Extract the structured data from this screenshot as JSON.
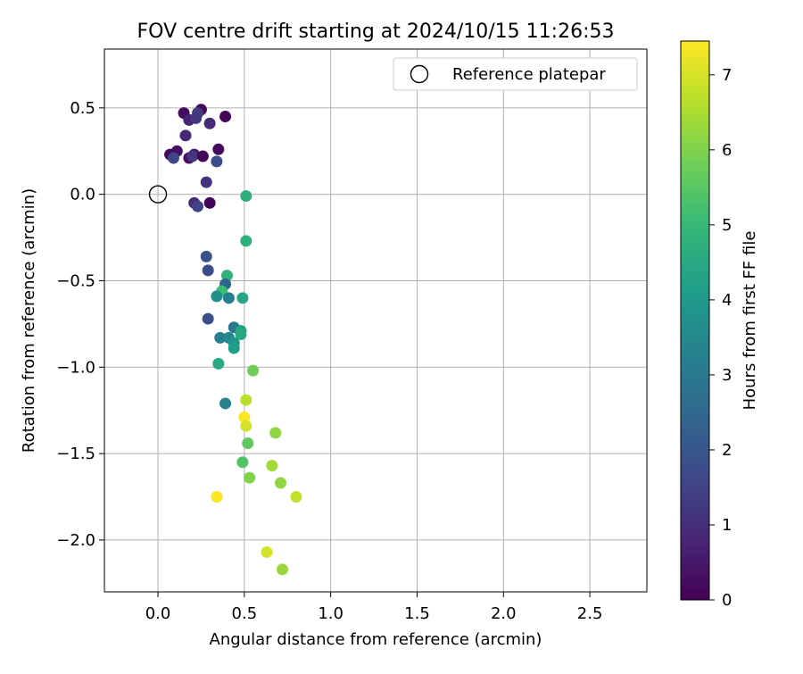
{
  "chart_data": {
    "type": "scatter",
    "title": "FOV centre drift starting at 2024/10/15 11:26:53",
    "xlabel": "Angular distance from reference (arcmin)",
    "ylabel": "Rotation from reference (arcmin)",
    "xlim": [
      -0.31,
      2.83
    ],
    "ylim": [
      -2.3,
      0.84
    ],
    "xticks": [
      0.0,
      0.5,
      1.0,
      1.5,
      2.0,
      2.5
    ],
    "xtick_labels": [
      "0.0",
      "0.5",
      "1.0",
      "1.5",
      "2.0",
      "2.5"
    ],
    "yticks": [
      0.5,
      0.0,
      -0.5,
      -1.0,
      -1.5,
      -2.0
    ],
    "ytick_labels": [
      "0.5",
      "0.0",
      "−0.5",
      "−1.0",
      "−1.5",
      "−2.0"
    ],
    "grid": true,
    "legend": {
      "placement": "top-right",
      "entries": [
        "Reference platepar"
      ]
    },
    "reference_point": {
      "x": 0.0,
      "y": 0.0
    },
    "colorbar": {
      "label": "Hours from first FF file",
      "min": 0,
      "max": 7.45,
      "ticks": [
        0,
        1,
        2,
        3,
        4,
        5,
        6,
        7
      ],
      "tick_labels": [
        "0",
        "1",
        "2",
        "3",
        "4",
        "5",
        "6",
        "7"
      ],
      "colormap": "viridis",
      "stops": [
        "#440154",
        "#482878",
        "#3e4989",
        "#31688e",
        "#26828e",
        "#1f9e89",
        "#35b779",
        "#6ece58",
        "#b5de2b",
        "#fde725"
      ]
    },
    "points": [
      {
        "x": 0.25,
        "y": 0.49,
        "h": 0.1
      },
      {
        "x": 0.39,
        "y": 0.45,
        "h": 0.1
      },
      {
        "x": 0.15,
        "y": 0.47,
        "h": 0.2
      },
      {
        "x": 0.18,
        "y": 0.43,
        "h": 0.7
      },
      {
        "x": 0.23,
        "y": 0.47,
        "h": 1.3
      },
      {
        "x": 0.22,
        "y": 0.44,
        "h": 1.2
      },
      {
        "x": 0.3,
        "y": 0.41,
        "h": 0.9
      },
      {
        "x": 0.16,
        "y": 0.34,
        "h": 0.8
      },
      {
        "x": 0.35,
        "y": 0.26,
        "h": 0.2
      },
      {
        "x": 0.11,
        "y": 0.25,
        "h": 0.3
      },
      {
        "x": 0.07,
        "y": 0.23,
        "h": 0.2
      },
      {
        "x": 0.18,
        "y": 0.21,
        "h": 0.3
      },
      {
        "x": 0.21,
        "y": 0.23,
        "h": 0.5
      },
      {
        "x": 0.2,
        "y": 0.22,
        "h": 1.2
      },
      {
        "x": 0.26,
        "y": 0.22,
        "h": 0.1
      },
      {
        "x": 0.09,
        "y": 0.21,
        "h": 1.6
      },
      {
        "x": 0.34,
        "y": 0.19,
        "h": 1.8
      },
      {
        "x": 0.28,
        "y": 0.07,
        "h": 1.1
      },
      {
        "x": 0.21,
        "y": -0.05,
        "h": 0.9
      },
      {
        "x": 0.23,
        "y": -0.07,
        "h": 1.5
      },
      {
        "x": 0.3,
        "y": -0.05,
        "h": 0.1
      },
      {
        "x": 0.51,
        "y": -0.01,
        "h": 4.7
      },
      {
        "x": 0.51,
        "y": -0.27,
        "h": 4.7
      },
      {
        "x": 0.28,
        "y": -0.36,
        "h": 1.9
      },
      {
        "x": 0.29,
        "y": -0.44,
        "h": 1.7
      },
      {
        "x": 0.4,
        "y": -0.47,
        "h": 4.8
      },
      {
        "x": 0.39,
        "y": -0.52,
        "h": 2.4
      },
      {
        "x": 0.37,
        "y": -0.56,
        "h": 5.1
      },
      {
        "x": 0.34,
        "y": -0.59,
        "h": 3.7
      },
      {
        "x": 0.41,
        "y": -0.6,
        "h": 3.2
      },
      {
        "x": 0.49,
        "y": -0.6,
        "h": 4.4
      },
      {
        "x": 0.29,
        "y": -0.72,
        "h": 1.8
      },
      {
        "x": 0.44,
        "y": -0.77,
        "h": 3.0
      },
      {
        "x": 0.48,
        "y": -0.79,
        "h": 4.3
      },
      {
        "x": 0.48,
        "y": -0.81,
        "h": 4.5
      },
      {
        "x": 0.36,
        "y": -0.83,
        "h": 3.2
      },
      {
        "x": 0.41,
        "y": -0.83,
        "h": 3.5
      },
      {
        "x": 0.44,
        "y": -0.86,
        "h": 3.9
      },
      {
        "x": 0.44,
        "y": -0.89,
        "h": 4.2
      },
      {
        "x": 0.35,
        "y": -0.98,
        "h": 4.5
      },
      {
        "x": 0.55,
        "y": -1.02,
        "h": 5.8
      },
      {
        "x": 0.39,
        "y": -1.21,
        "h": 3.3
      },
      {
        "x": 0.51,
        "y": -1.19,
        "h": 6.7
      },
      {
        "x": 0.5,
        "y": -1.29,
        "h": 7.4
      },
      {
        "x": 0.51,
        "y": -1.34,
        "h": 7.0
      },
      {
        "x": 0.68,
        "y": -1.38,
        "h": 6.2
      },
      {
        "x": 0.52,
        "y": -1.44,
        "h": 5.6
      },
      {
        "x": 0.49,
        "y": -1.55,
        "h": 5.4
      },
      {
        "x": 0.66,
        "y": -1.57,
        "h": 6.4
      },
      {
        "x": 0.53,
        "y": -1.64,
        "h": 6.0
      },
      {
        "x": 0.71,
        "y": -1.67,
        "h": 6.2
      },
      {
        "x": 0.34,
        "y": -1.75,
        "h": 7.4
      },
      {
        "x": 0.8,
        "y": -1.75,
        "h": 6.8
      },
      {
        "x": 0.63,
        "y": -2.07,
        "h": 7.0
      },
      {
        "x": 0.72,
        "y": -2.17,
        "h": 6.3
      }
    ]
  }
}
